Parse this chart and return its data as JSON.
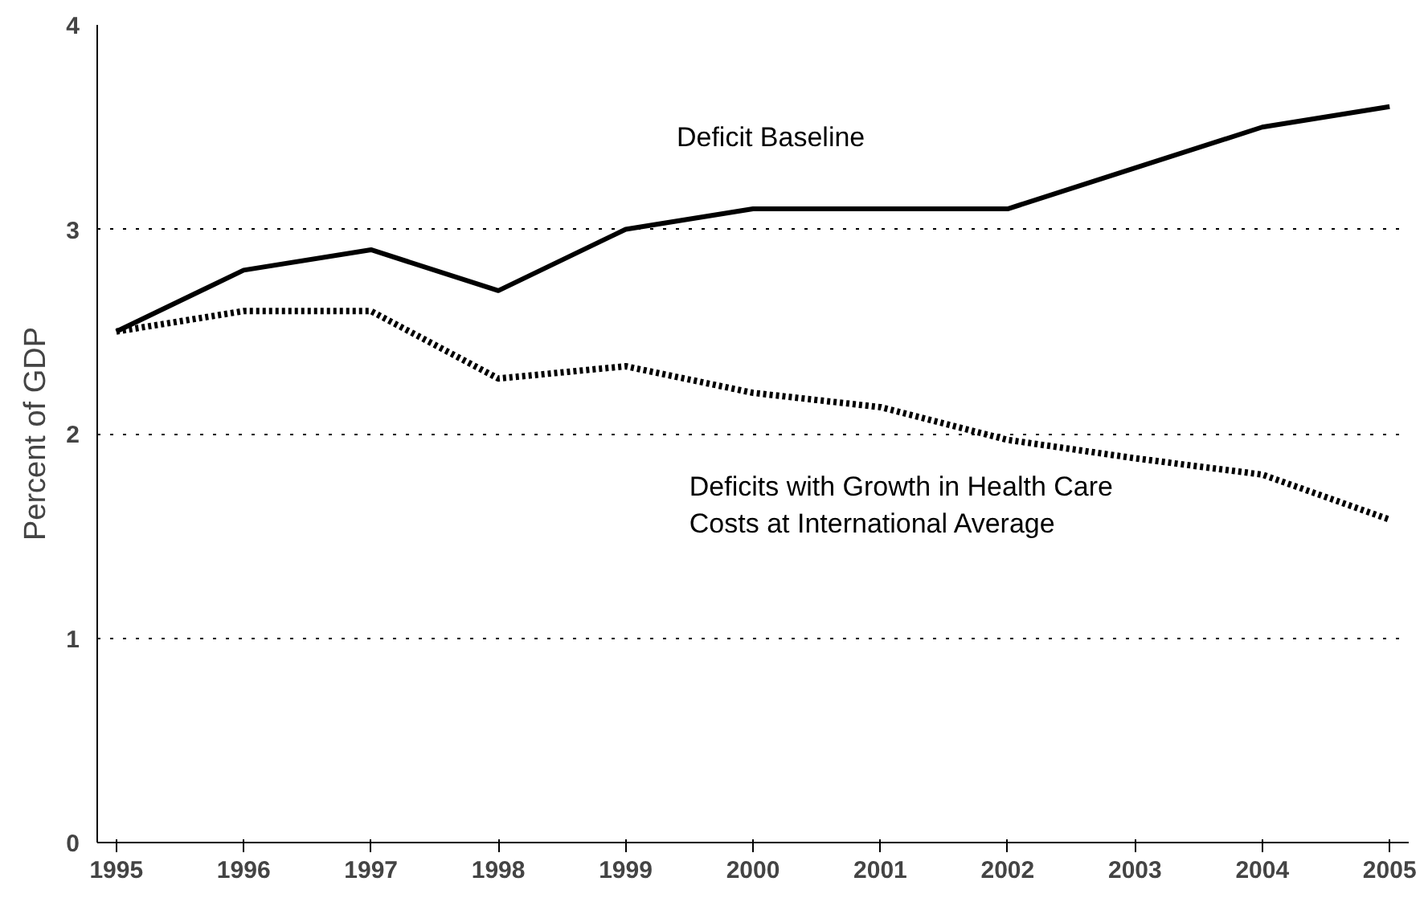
{
  "chart_data": {
    "type": "line",
    "ylabel": "Percent of GDP",
    "x": [
      1995,
      1996,
      1997,
      1998,
      1999,
      2000,
      2001,
      2002,
      2003,
      2004,
      2005
    ],
    "xlim": [
      1994.85,
      2005.15
    ],
    "xticks": [
      1995,
      1996,
      1997,
      1998,
      1999,
      2000,
      2001,
      2002,
      2003,
      2004,
      2005
    ],
    "ylim": [
      0,
      4
    ],
    "yticks": [
      0,
      1,
      2,
      3,
      4
    ],
    "grid": "y",
    "series": [
      {
        "name": "Deficit Baseline",
        "color": "#000000",
        "line_style": "solid",
        "values": [
          2.5,
          2.8,
          2.9,
          2.7,
          3.0,
          3.1,
          3.1,
          3.1,
          3.3,
          3.5,
          3.6
        ]
      },
      {
        "name": "Deficits with Growth in Health Care\nCosts at International Average",
        "color": "#000000",
        "line_style": "dotted",
        "values": [
          2.5,
          2.6,
          2.6,
          2.27,
          2.33,
          2.2,
          2.13,
          1.97,
          1.88,
          1.8,
          1.58
        ]
      }
    ]
  }
}
